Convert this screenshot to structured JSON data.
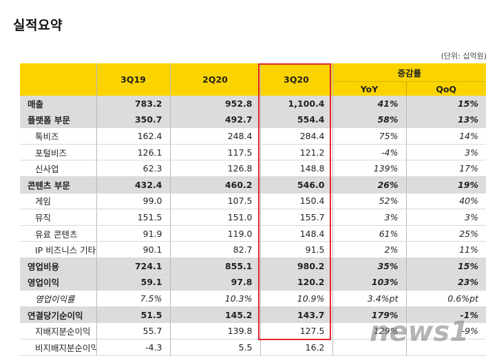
{
  "title": "실적요약",
  "unit": "(단위: 십억원)",
  "header": {
    "col_q1": "3Q19",
    "col_q2": "2Q20",
    "col_q3": "3Q20",
    "group": "증감률",
    "yoy": "YoY",
    "qoq": "QoQ"
  },
  "rows": [
    {
      "label": "매출",
      "q1": "783.2",
      "q2": "952.8",
      "q3": "1,100.4",
      "yoy": "41%",
      "qoq": "15%"
    },
    {
      "label": "플랫폼 부문",
      "q1": "350.7",
      "q2": "492.7",
      "q3": "554.4",
      "yoy": "58%",
      "qoq": "13%"
    },
    {
      "label": "톡비즈",
      "q1": "162.4",
      "q2": "248.4",
      "q3": "284.4",
      "yoy": "75%",
      "qoq": "14%"
    },
    {
      "label": "포털비즈",
      "q1": "126.1",
      "q2": "117.5",
      "q3": "121.2",
      "yoy": "-4%",
      "qoq": "3%"
    },
    {
      "label": "신사업",
      "q1": "62.3",
      "q2": "126.8",
      "q3": "148.8",
      "yoy": "139%",
      "qoq": "17%"
    },
    {
      "label": "콘텐츠 부문",
      "q1": "432.4",
      "q2": "460.2",
      "q3": "546.0",
      "yoy": "26%",
      "qoq": "19%"
    },
    {
      "label": "게임",
      "q1": "99.0",
      "q2": "107.5",
      "q3": "150.4",
      "yoy": "52%",
      "qoq": "40%"
    },
    {
      "label": "뮤직",
      "q1": "151.5",
      "q2": "151.0",
      "q3": "155.7",
      "yoy": "3%",
      "qoq": "3%"
    },
    {
      "label": "유료 콘텐츠",
      "q1": "91.9",
      "q2": "119.0",
      "q3": "148.4",
      "yoy": "61%",
      "qoq": "25%"
    },
    {
      "label": "IP 비즈니스 기타",
      "q1": "90.1",
      "q2": "82.7",
      "q3": "91.5",
      "yoy": "2%",
      "qoq": "11%"
    },
    {
      "label": "영업비용",
      "q1": "724.1",
      "q2": "855.1",
      "q3": "980.2",
      "yoy": "35%",
      "qoq": "15%"
    },
    {
      "label": "영업이익",
      "q1": "59.1",
      "q2": "97.8",
      "q3": "120.2",
      "yoy": "103%",
      "qoq": "23%"
    },
    {
      "label": "영업이익률",
      "q1": "7.5%",
      "q2": "10.3%",
      "q3": "10.9%",
      "yoy": "3.4%pt",
      "qoq": "0.6%pt"
    },
    {
      "label": "연결당기순이익",
      "q1": "51.5",
      "q2": "145.2",
      "q3": "143.7",
      "yoy": "179%",
      "qoq": "-1%"
    },
    {
      "label": "지배지분순이익",
      "q1": "55.7",
      "q2": "139.8",
      "q3": "127.5",
      "yoy": "129%",
      "qoq": "-9%"
    },
    {
      "label": "비지배지분순이익",
      "q1": "-4.3",
      "q2": "5.5",
      "q3": "16.2",
      "yoy": "",
      "qoq": ""
    }
  ],
  "watermark": "news1",
  "colors": {
    "header": "#fbd400",
    "highlight": "#e8242b",
    "bold_row": "#dcdcdc"
  }
}
